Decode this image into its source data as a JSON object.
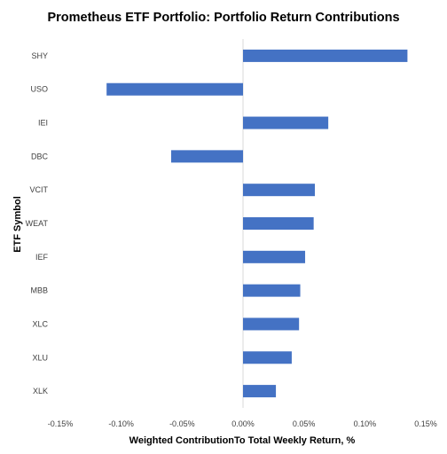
{
  "chart_data": {
    "type": "bar",
    "orientation": "horizontal",
    "title": "Prometheus ETF Portfolio: Portfolio Return Contributions",
    "xlabel": "Weighted ContributionTo Total Weekly Return, %",
    "ylabel": "ETF Symbol",
    "xlim": [
      -0.15,
      0.15
    ],
    "x_ticks": [
      -0.15,
      -0.1,
      -0.05,
      0.0,
      0.05,
      0.1,
      0.15
    ],
    "x_tick_labels": [
      "-0.15%",
      "-0.10%",
      "-0.05%",
      "0.00%",
      "0.05%",
      "0.10%",
      "0.15%"
    ],
    "categories": [
      "SHY",
      "USO",
      "IEI",
      "DBC",
      "VCIT",
      "WEAT",
      "IEF",
      "MBB",
      "XLC",
      "XLU",
      "XLK"
    ],
    "values": [
      0.135,
      -0.112,
      0.07,
      -0.059,
      0.059,
      0.058,
      0.051,
      0.047,
      0.046,
      0.04,
      0.027
    ],
    "bar_color": "#4472C4",
    "zero_line_color": "#D9D9D9",
    "grid": false,
    "legend": false
  }
}
